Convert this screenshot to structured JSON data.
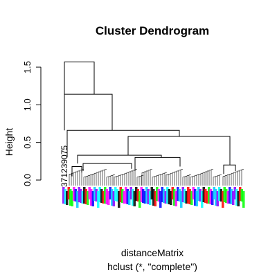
{
  "chart_data": {
    "type": "dendrogram",
    "title": "Cluster Dendrogram",
    "ylabel": "Height",
    "xlabel": "distanceMatrix",
    "subtitle": "hclust (*, \"complete\")",
    "ylim": [
      0,
      1.6
    ],
    "yticks": [
      0.0,
      0.5,
      1.0,
      1.5
    ],
    "ytick_labels": [
      "0.0",
      "0.5",
      "1.0",
      "1.5"
    ],
    "merge_heights": [
      1.57,
      1.14,
      0.66,
      0.58,
      0.33,
      0.2,
      0.18,
      0.15,
      0.1
    ],
    "leaf_label_sample": "371239075",
    "leaf_colors": [
      "#00c8ff",
      "#0000ff",
      "#ff00ff",
      "#00ff00",
      "#ff0000",
      "#000000",
      "#00ffff",
      "#8800ff"
    ],
    "top_merges": [
      {
        "left_x": 93,
        "right_x": 136,
        "height": 1.57,
        "left_child": 1.14,
        "right_child": 1.14
      },
      {
        "left_x": 93,
        "right_x": 162,
        "height": 1.14,
        "left_child": 0.66,
        "right_child": 0.66
      },
      {
        "left_x": 97,
        "right_x": 259,
        "height": 0.66,
        "left_child": 0.3,
        "right_child": 0.58
      },
      {
        "left_x": 185,
        "right_x": 332,
        "height": 0.58,
        "left_child": 0.33,
        "right_child": 0.2
      }
    ]
  }
}
